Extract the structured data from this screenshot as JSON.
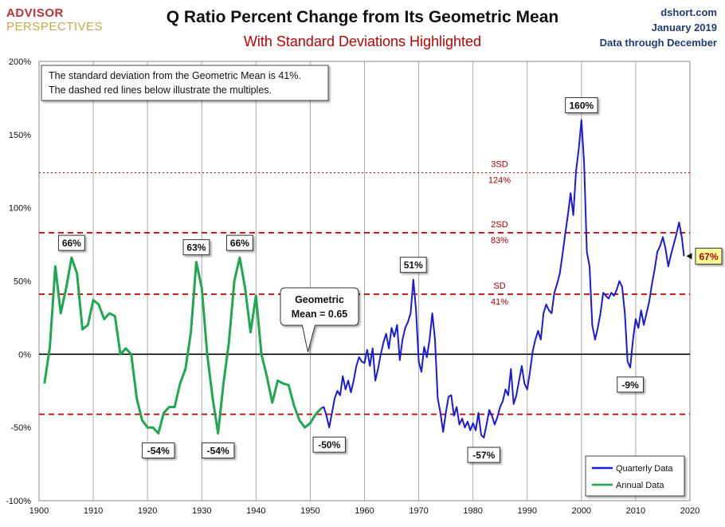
{
  "header": {
    "title": "Q Ratio Percent Change from Its Geometric Mean",
    "subtitle": "With Standard Deviations Highlighted",
    "brand_line1": "ADVISOR",
    "brand_line2": "PERSPECTIVES",
    "source_line1": "dshort.com",
    "source_line2": "January 2019",
    "source_line3": "Data through December"
  },
  "colors": {
    "quarterly": "#1a1adb",
    "annual": "#1fa84f",
    "sd_line": "#c00000",
    "highlight_box": "#ffff99"
  },
  "chart_data": {
    "type": "line",
    "xlim": [
      1900,
      2020
    ],
    "ylim": [
      -100,
      200
    ],
    "x_ticks": [
      1900,
      1910,
      1920,
      1930,
      1940,
      1950,
      1960,
      1970,
      1980,
      1990,
      2000,
      2010,
      2020
    ],
    "x_tick_labels": [
      "1900",
      "1910",
      "1920",
      "1930",
      "1940",
      "1950",
      "1960",
      "1970",
      "1980",
      "1990",
      "2000",
      "2010",
      "2020"
    ],
    "y_ticks": [
      -100,
      -50,
      0,
      50,
      100,
      150,
      200
    ],
    "y_tick_labels": [
      "-100%",
      "-50%",
      "0%",
      "50%",
      "100%",
      "150%",
      "200%"
    ],
    "grid": "vertical",
    "legend_position": "bottom-right",
    "series": [
      {
        "name": "Annual Data",
        "color_key": "annual",
        "points": [
          [
            1901,
            -20
          ],
          [
            1902,
            5
          ],
          [
            1903,
            60
          ],
          [
            1904,
            28
          ],
          [
            1905,
            45
          ],
          [
            1906,
            66
          ],
          [
            1907,
            55
          ],
          [
            1908,
            17
          ],
          [
            1909,
            20
          ],
          [
            1910,
            37
          ],
          [
            1911,
            34
          ],
          [
            1912,
            24
          ],
          [
            1913,
            28
          ],
          [
            1914,
            26
          ],
          [
            1915,
            0
          ],
          [
            1916,
            4
          ],
          [
            1917,
            0
          ],
          [
            1918,
            -30
          ],
          [
            1919,
            -45
          ],
          [
            1920,
            -50
          ],
          [
            1921,
            -50
          ],
          [
            1922,
            -54
          ],
          [
            1923,
            -40
          ],
          [
            1924,
            -36
          ],
          [
            1925,
            -36
          ],
          [
            1926,
            -20
          ],
          [
            1927,
            -10
          ],
          [
            1928,
            15
          ],
          [
            1929,
            63
          ],
          [
            1930,
            45
          ],
          [
            1931,
            0
          ],
          [
            1932,
            -30
          ],
          [
            1933,
            -54
          ],
          [
            1934,
            -20
          ],
          [
            1935,
            8
          ],
          [
            1936,
            50
          ],
          [
            1937,
            66
          ],
          [
            1938,
            45
          ],
          [
            1939,
            15
          ],
          [
            1940,
            40
          ],
          [
            1941,
            0
          ],
          [
            1942,
            -15
          ],
          [
            1943,
            -33
          ],
          [
            1944,
            -18
          ],
          [
            1945,
            -20
          ],
          [
            1946,
            -21
          ],
          [
            1947,
            -35
          ],
          [
            1948,
            -45
          ],
          [
            1949,
            -50
          ],
          [
            1950,
            -47
          ],
          [
            1951,
            -41
          ],
          [
            1952,
            -37
          ]
        ]
      },
      {
        "name": "Quarterly Data",
        "color_key": "quarterly",
        "points": [
          [
            1952,
            -37
          ],
          [
            1952.5,
            -36
          ],
          [
            1953,
            -42
          ],
          [
            1953.5,
            -50
          ],
          [
            1954,
            -40
          ],
          [
            1954.5,
            -30
          ],
          [
            1955,
            -25
          ],
          [
            1955.5,
            -28
          ],
          [
            1956,
            -15
          ],
          [
            1956.5,
            -24
          ],
          [
            1957,
            -18
          ],
          [
            1957.5,
            -26
          ],
          [
            1958,
            -18
          ],
          [
            1958.5,
            -8
          ],
          [
            1959,
            -2
          ],
          [
            1959.5,
            -5
          ],
          [
            1960,
            -6
          ],
          [
            1960.5,
            3
          ],
          [
            1961,
            -8
          ],
          [
            1961.5,
            4
          ],
          [
            1962,
            -18
          ],
          [
            1962.5,
            -10
          ],
          [
            1963,
            0
          ],
          [
            1963.5,
            8
          ],
          [
            1964,
            14
          ],
          [
            1964.5,
            4
          ],
          [
            1965,
            18
          ],
          [
            1965.5,
            12
          ],
          [
            1966,
            20
          ],
          [
            1966.5,
            -4
          ],
          [
            1967,
            10
          ],
          [
            1967.5,
            18
          ],
          [
            1968,
            22
          ],
          [
            1968.5,
            28
          ],
          [
            1969,
            51
          ],
          [
            1969.5,
            30
          ],
          [
            1970,
            -5
          ],
          [
            1970.5,
            -12
          ],
          [
            1971,
            5
          ],
          [
            1971.5,
            -2
          ],
          [
            1972,
            10
          ],
          [
            1972.5,
            28
          ],
          [
            1973,
            10
          ],
          [
            1973.5,
            -30
          ],
          [
            1974,
            -40
          ],
          [
            1974.5,
            -53
          ],
          [
            1975,
            -40
          ],
          [
            1975.5,
            -29
          ],
          [
            1976,
            -28
          ],
          [
            1976.5,
            -42
          ],
          [
            1977,
            -36
          ],
          [
            1977.5,
            -48
          ],
          [
            1978,
            -44
          ],
          [
            1978.5,
            -50
          ],
          [
            1979,
            -46
          ],
          [
            1979.5,
            -52
          ],
          [
            1980,
            -47
          ],
          [
            1980.5,
            -52
          ],
          [
            1981,
            -40
          ],
          [
            1981.5,
            -55
          ],
          [
            1982,
            -57
          ],
          [
            1982.5,
            -48
          ],
          [
            1983,
            -38
          ],
          [
            1983.5,
            -42
          ],
          [
            1984,
            -48
          ],
          [
            1984.5,
            -43
          ],
          [
            1985,
            -36
          ],
          [
            1985.5,
            -32
          ],
          [
            1986,
            -24
          ],
          [
            1986.5,
            -28
          ],
          [
            1987,
            -10
          ],
          [
            1987.5,
            -34
          ],
          [
            1988,
            -28
          ],
          [
            1988.5,
            -18
          ],
          [
            1989,
            -8
          ],
          [
            1989.5,
            -20
          ],
          [
            1990,
            -24
          ],
          [
            1990.5,
            -12
          ],
          [
            1991,
            2
          ],
          [
            1991.5,
            10
          ],
          [
            1992,
            16
          ],
          [
            1992.5,
            10
          ],
          [
            1993,
            28
          ],
          [
            1993.5,
            34
          ],
          [
            1994,
            30
          ],
          [
            1994.5,
            28
          ],
          [
            1995,
            42
          ],
          [
            1995.5,
            48
          ],
          [
            1996,
            55
          ],
          [
            1996.5,
            68
          ],
          [
            1997,
            82
          ],
          [
            1997.5,
            95
          ],
          [
            1998,
            110
          ],
          [
            1998.5,
            95
          ],
          [
            1999,
            125
          ],
          [
            1999.5,
            140
          ],
          [
            2000,
            160
          ],
          [
            2000.5,
            130
          ],
          [
            2001,
            70
          ],
          [
            2001.5,
            60
          ],
          [
            2002,
            20
          ],
          [
            2002.5,
            10
          ],
          [
            2003,
            18
          ],
          [
            2003.5,
            28
          ],
          [
            2004,
            42
          ],
          [
            2004.5,
            40
          ],
          [
            2005,
            38
          ],
          [
            2005.5,
            42
          ],
          [
            2006,
            40
          ],
          [
            2006.5,
            44
          ],
          [
            2007,
            50
          ],
          [
            2007.5,
            46
          ],
          [
            2008,
            28
          ],
          [
            2008.5,
            -5
          ],
          [
            2009,
            -9
          ],
          [
            2009.5,
            10
          ],
          [
            2010,
            24
          ],
          [
            2010.5,
            18
          ],
          [
            2011,
            30
          ],
          [
            2011.5,
            20
          ],
          [
            2012,
            28
          ],
          [
            2012.5,
            36
          ],
          [
            2013,
            48
          ],
          [
            2013.5,
            58
          ],
          [
            2014,
            70
          ],
          [
            2014.5,
            74
          ],
          [
            2015,
            80
          ],
          [
            2015.5,
            72
          ],
          [
            2016,
            60
          ],
          [
            2016.5,
            68
          ],
          [
            2017,
            75
          ],
          [
            2017.5,
            82
          ],
          [
            2018,
            90
          ],
          [
            2018.5,
            80
          ],
          [
            2018.9,
            67
          ]
        ]
      }
    ],
    "reference_lines": [
      {
        "value": 124,
        "label_top": "3SD",
        "label_bottom": "124%",
        "style": "dotted"
      },
      {
        "value": 83,
        "label_top": "2SD",
        "label_bottom": "83%",
        "style": "dashed"
      },
      {
        "value": 41,
        "label_top": "SD",
        "label_bottom": "41%",
        "style": "dashed"
      },
      {
        "value": -41,
        "label_top": "",
        "label_bottom": "",
        "style": "dashed"
      },
      {
        "value": 0,
        "label_top": "",
        "label_bottom": "",
        "style": "solid"
      }
    ],
    "info_box": {
      "line1": "The standard deviation from the Geometric Mean is 41%.",
      "line2": "The dashed red lines below illustrate the multiples."
    },
    "callout": {
      "line1": "Geometric",
      "line2": "Mean = 0.65",
      "x": 1950,
      "y": 0
    },
    "annotations": [
      {
        "text": "66%",
        "x": 1906,
        "y": 66,
        "pos": "above"
      },
      {
        "text": "63%",
        "x": 1929,
        "y": 63,
        "pos": "above"
      },
      {
        "text": "66%",
        "x": 1937,
        "y": 66,
        "pos": "above"
      },
      {
        "text": "51%",
        "x": 1969,
        "y": 51,
        "pos": "above"
      },
      {
        "text": "160%",
        "x": 2000,
        "y": 160,
        "pos": "above"
      },
      {
        "text": "-54%",
        "x": 1922,
        "y": -54,
        "pos": "below"
      },
      {
        "text": "-54%",
        "x": 1933,
        "y": -54,
        "pos": "below"
      },
      {
        "text": "-50%",
        "x": 1953.5,
        "y": -50,
        "pos": "below"
      },
      {
        "text": "-57%",
        "x": 1982,
        "y": -57,
        "pos": "below"
      },
      {
        "text": "-9%",
        "x": 2009,
        "y": -9,
        "pos": "below"
      }
    ],
    "last_value_label": {
      "text": "67%",
      "x": 2018.9,
      "y": 67
    }
  }
}
